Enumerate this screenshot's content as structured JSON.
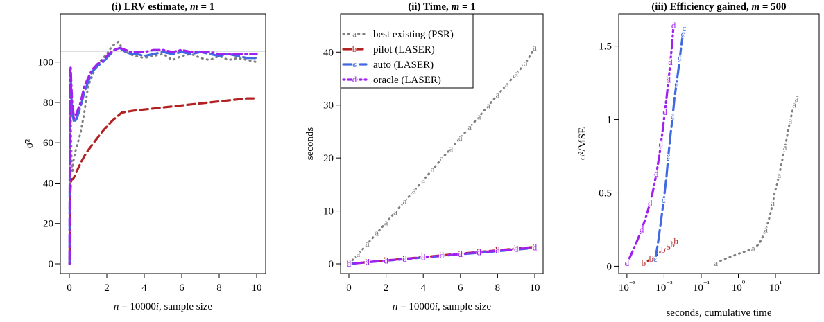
{
  "colors": {
    "grey": "#7f7f7f",
    "red": "#b22222",
    "blue": "#4169e1",
    "purple": "#a020f0",
    "axis": "#000000"
  },
  "chart_data": [
    {
      "type": "line",
      "title_prefix": "(i) LRV estimate, ",
      "title_var": "m",
      "title_suffix": " = 1",
      "xlabel_var1": "n",
      "xlabel_mid": " = 10000",
      "xlabel_var2": "i",
      "xlabel_suffix": ", sample size",
      "ylabel": "σ̂²",
      "xlim": [
        0,
        10
      ],
      "ylim": [
        0,
        110
      ],
      "x_ticks": [
        0,
        2,
        4,
        6,
        8,
        10
      ],
      "y_ticks": [
        0,
        20,
        40,
        60,
        80,
        100
      ],
      "reference_line": 105.5,
      "series": [
        {
          "key": "a",
          "style": "dotted",
          "color": "grey",
          "x": [
            0.01,
            0.02,
            0.03,
            0.04,
            0.05,
            0.07,
            0.09,
            0.12,
            0.16,
            0.2,
            0.3,
            0.45,
            0.6,
            0.8,
            1.0,
            1.3,
            1.6,
            2.0,
            2.3,
            2.6,
            2.9,
            3.2,
            3.5,
            4.0,
            4.5,
            5.0,
            5.5,
            6.0,
            6.5,
            7.0,
            7.5,
            8.0,
            8.5,
            9.0,
            9.5,
            10.0
          ],
          "y": [
            0,
            20,
            45,
            55,
            70,
            75,
            65,
            50,
            45,
            50,
            55,
            60,
            65,
            75,
            88,
            95,
            100,
            104,
            108,
            110,
            106,
            104,
            103,
            102,
            103,
            104,
            101,
            103,
            104,
            102,
            101,
            103,
            101,
            102,
            101,
            100
          ]
        },
        {
          "key": "b",
          "style": "dashed",
          "color": "red",
          "x": [
            0.01,
            0.02,
            0.03,
            0.05,
            0.08,
            0.12,
            0.2,
            0.35,
            0.6,
            0.9,
            1.3,
            1.8,
            2.3,
            2.8,
            3.5,
            4.5,
            5.5,
            6.5,
            7.5,
            8.5,
            9.5,
            10.0
          ],
          "y": [
            0,
            10,
            25,
            35,
            40,
            42,
            42,
            45,
            50,
            55,
            60,
            66,
            71,
            75,
            76,
            77,
            78,
            79,
            80,
            81,
            82,
            82
          ]
        },
        {
          "key": "c",
          "style": "longdash",
          "color": "blue",
          "x": [
            0.01,
            0.02,
            0.03,
            0.04,
            0.05,
            0.07,
            0.1,
            0.15,
            0.25,
            0.4,
            0.6,
            0.8,
            1.0,
            1.2,
            1.5,
            1.8,
            2.1,
            2.4,
            2.7,
            3.0,
            3.3,
            3.6,
            4.0,
            4.5,
            5.0,
            5.5,
            6.0,
            6.5,
            7.0,
            7.5,
            8.0,
            8.5,
            9.0,
            9.5,
            10.0
          ],
          "y": [
            0,
            40,
            60,
            78,
            88,
            92,
            85,
            75,
            70,
            72,
            78,
            85,
            90,
            95,
            98,
            100,
            103,
            106,
            107,
            105,
            104,
            104,
            103,
            104,
            105,
            104,
            105,
            104,
            105,
            104,
            103,
            104,
            103,
            102,
            102
          ]
        },
        {
          "key": "d",
          "style": "dotdash",
          "color": "purple",
          "x": [
            0.01,
            0.02,
            0.03,
            0.04,
            0.05,
            0.07,
            0.1,
            0.15,
            0.25,
            0.4,
            0.6,
            0.8,
            1.0,
            1.2,
            1.5,
            1.8,
            2.1,
            2.4,
            2.7,
            3.0,
            3.3,
            3.6,
            4.0,
            4.5,
            5.0,
            5.5,
            6.0,
            6.5,
            7.0,
            7.5,
            8.0,
            8.5,
            9.0,
            9.5,
            10.0
          ],
          "y": [
            0,
            30,
            60,
            80,
            95,
            98,
            90,
            80,
            72,
            75,
            80,
            88,
            92,
            96,
            99,
            101,
            104,
            106,
            107,
            106,
            105,
            105,
            105,
            106,
            106,
            105,
            106,
            105,
            105,
            105,
            104,
            104,
            104,
            104,
            104
          ]
        }
      ]
    },
    {
      "type": "line",
      "title_prefix": "(ii) Time, ",
      "title_var": "m",
      "title_suffix": " = 1",
      "xlabel_var1": "n",
      "xlabel_mid": " = 10000",
      "xlabel_var2": "i",
      "xlabel_suffix": ", sample size",
      "ylabel": "seconds",
      "xlim": [
        0,
        10
      ],
      "ylim": [
        0,
        42
      ],
      "x_ticks": [
        0,
        2,
        4,
        6,
        8,
        10
      ],
      "y_ticks": [
        0,
        10,
        20,
        30,
        40
      ],
      "legend": {
        "placement": "top-left",
        "entries": [
          {
            "key": "a",
            "label": "best existing (PSR)",
            "color": "grey",
            "style": "dotted"
          },
          {
            "key": "b",
            "label": "pilot (LASER)",
            "color": "red",
            "style": "dashed"
          },
          {
            "key": "c",
            "label": "auto (LASER)",
            "color": "blue",
            "style": "longdash"
          },
          {
            "key": "d",
            "label": "oracle (LASER)",
            "color": "purple",
            "style": "dotdash"
          }
        ]
      },
      "series": [
        {
          "key": "a",
          "style": "dotted",
          "color": "grey",
          "x": [
            0,
            0.5,
            1,
            1.5,
            2,
            2.5,
            3,
            3.5,
            4,
            4.5,
            5,
            5.5,
            6,
            6.5,
            7,
            7.5,
            8,
            8.5,
            9,
            9.5,
            10
          ],
          "y": [
            0,
            1.8,
            3.8,
            5.8,
            7.8,
            9.8,
            11.8,
            13.8,
            15.8,
            17.8,
            19.9,
            21.8,
            23.8,
            25.8,
            27.8,
            29.9,
            31.9,
            33.9,
            35.9,
            37.9,
            40.8
          ],
          "label_x": [
            0,
            0.5,
            1,
            1.5,
            2,
            2.5,
            3,
            3.5,
            4,
            4.5,
            5,
            5.5,
            6,
            6.5,
            7,
            7.5,
            8,
            8.5,
            9,
            9.5,
            10
          ]
        },
        {
          "key": "b",
          "style": "dashed",
          "color": "red",
          "x": [
            0,
            1,
            2,
            3,
            4,
            5,
            6,
            7,
            8,
            9,
            10
          ],
          "y": [
            0,
            0.32,
            0.64,
            0.96,
            1.28,
            1.6,
            1.92,
            2.24,
            2.56,
            2.88,
            3.2
          ],
          "label_x": [
            0,
            1,
            2,
            3,
            4,
            5,
            6,
            7,
            8,
            9,
            10
          ]
        },
        {
          "key": "c",
          "style": "longdash",
          "color": "blue",
          "x": [
            0,
            1,
            2,
            3,
            4,
            5,
            6,
            7,
            8,
            9,
            10
          ],
          "y": [
            0,
            0.3,
            0.6,
            0.9,
            1.2,
            1.5,
            1.8,
            2.1,
            2.4,
            2.7,
            3.0
          ],
          "label_x": [
            0,
            1,
            2,
            3,
            4,
            5,
            6,
            7,
            8,
            9,
            10
          ]
        },
        {
          "key": "d",
          "style": "dotdash",
          "color": "purple",
          "x": [
            0,
            1,
            2,
            3,
            4,
            5,
            6,
            7,
            8,
            9,
            10
          ],
          "y": [
            0,
            0.31,
            0.62,
            0.93,
            1.24,
            1.55,
            1.86,
            2.17,
            2.48,
            2.79,
            3.1
          ],
          "label_x": [
            0,
            1,
            2,
            3,
            4,
            5,
            6,
            7,
            8,
            9,
            10
          ]
        }
      ]
    },
    {
      "type": "line",
      "title_prefix": "(iii) Efficiency gained, ",
      "title_var": "m",
      "title_suffix": " = 500",
      "xlabel": "seconds, cumulative time",
      "ylabel": "σ²/MSE",
      "x_scale": "log",
      "xlim": [
        0.0006,
        150
      ],
      "ylim": [
        -0.05,
        1.72
      ],
      "x_ticks": [
        0.001,
        0.01,
        0.1,
        1,
        10
      ],
      "x_tick_labels": [
        "10⁻³",
        "10⁻²",
        "10⁻¹",
        "10⁰",
        "10¹"
      ],
      "y_ticks": [
        0,
        0.5,
        1,
        1.5
      ],
      "y_tick_labels": [
        "0",
        "0.5",
        "1",
        "1.5"
      ],
      "series": [
        {
          "key": "a",
          "style": "dotted",
          "color": "grey",
          "x": [
            0.25,
            0.35,
            0.55,
            0.9,
            1.5,
            2.5,
            3.6,
            4.5,
            5.5,
            6.5,
            7.5,
            8.5,
            9.5,
            11,
            12.5,
            14,
            16,
            18,
            20,
            22,
            25,
            28,
            32,
            37,
            42
          ],
          "y": [
            0.02,
            0.04,
            0.06,
            0.08,
            0.1,
            0.12,
            0.15,
            0.2,
            0.25,
            0.31,
            0.37,
            0.43,
            0.5,
            0.56,
            0.62,
            0.68,
            0.75,
            0.81,
            0.87,
            0.93,
            0.99,
            1.05,
            1.1,
            1.14,
            1.18
          ],
          "label_x": [
            0.25,
            2.5,
            5.5,
            8.5,
            12.5,
            18,
            25,
            32,
            37
          ]
        },
        {
          "key": "b",
          "style": "dotted",
          "color": "red",
          "x": [
            0.0028,
            0.0045,
            0.0065,
            0.0095,
            0.013,
            0.017,
            0.021
          ],
          "y": [
            0.02,
            0.05,
            0.08,
            0.11,
            0.13,
            0.15,
            0.17
          ],
          "label_x": [
            0.0028,
            0.0045,
            0.0095,
            0.013,
            0.017,
            0.021
          ]
        },
        {
          "key": "c",
          "style": "longdash",
          "color": "blue",
          "x": [
            0.0058,
            0.0068,
            0.0082,
            0.0098,
            0.0115,
            0.013,
            0.015,
            0.017,
            0.019,
            0.0215,
            0.024,
            0.0265,
            0.029,
            0.032,
            0.035
          ],
          "y": [
            0.05,
            0.15,
            0.3,
            0.45,
            0.6,
            0.75,
            0.9,
            1.02,
            1.14,
            1.24,
            1.33,
            1.42,
            1.5,
            1.58,
            1.62
          ],
          "label_x": [
            0.0058,
            0.0098,
            0.013,
            0.017,
            0.0215,
            0.0265,
            0.032,
            0.035
          ]
        },
        {
          "key": "d",
          "style": "dotdash",
          "color": "purple",
          "x": [
            0.001,
            0.0013,
            0.0018,
            0.0025,
            0.0033,
            0.0042,
            0.0052,
            0.0062,
            0.0072,
            0.0082,
            0.0092,
            0.0105,
            0.0118,
            0.0132,
            0.0148,
            0.0165,
            0.018
          ],
          "y": [
            0.02,
            0.08,
            0.16,
            0.25,
            0.34,
            0.43,
            0.53,
            0.63,
            0.73,
            0.83,
            0.93,
            1.05,
            1.16,
            1.27,
            1.39,
            1.52,
            1.64
          ],
          "label_x": [
            0.001,
            0.0025,
            0.0042,
            0.0062,
            0.0082,
            0.0105,
            0.0132,
            0.0148,
            0.018
          ]
        }
      ]
    }
  ]
}
